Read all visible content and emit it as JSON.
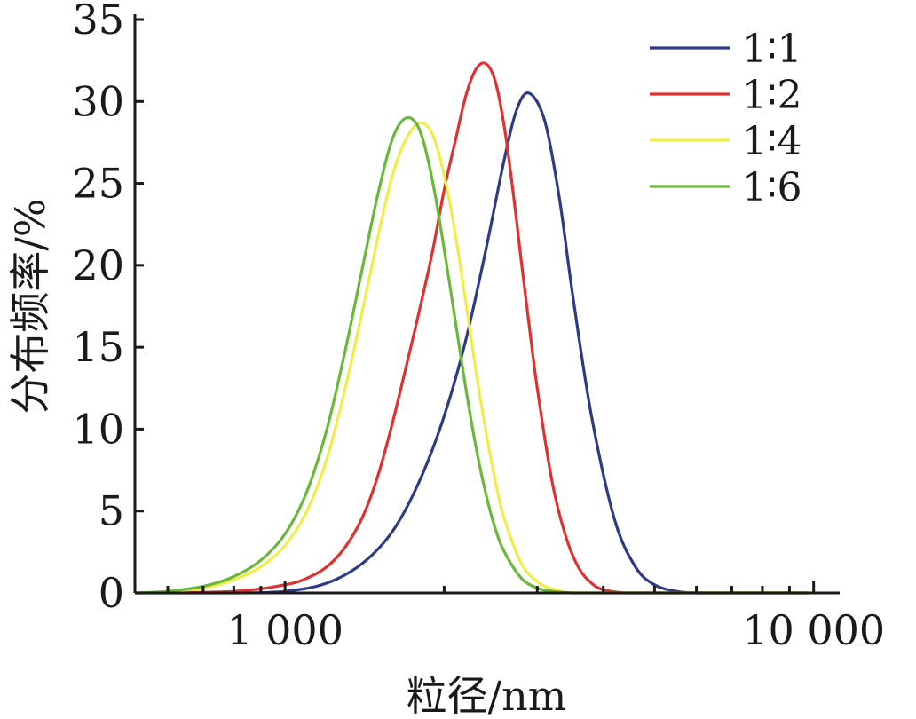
{
  "chart_data": {
    "type": "line",
    "x_scale": "log",
    "xlabel": "粒径/nm",
    "ylabel": "分布频率/%",
    "xlim": [
      520,
      11200
    ],
    "ylim": [
      0,
      35
    ],
    "x_ticks": [
      {
        "value": 1000,
        "label": "1 000"
      },
      {
        "value": 10000,
        "label": "10 000"
      }
    ],
    "y_ticks": [
      {
        "value": 0,
        "label": "0"
      },
      {
        "value": 5,
        "label": "5"
      },
      {
        "value": 10,
        "label": "10"
      },
      {
        "value": 15,
        "label": "15"
      },
      {
        "value": 20,
        "label": "20"
      },
      {
        "value": 25,
        "label": "25"
      },
      {
        "value": 30,
        "label": "30"
      },
      {
        "value": 35,
        "label": "35"
      }
    ],
    "grid": false,
    "legend_position": "top-right",
    "series": [
      {
        "name": "1∶1",
        "color": "#2e3a87",
        "x": [
          520,
          800,
          1000,
          1200,
          1400,
          1600,
          1800,
          2000,
          2200,
          2400,
          2600,
          2750,
          2900,
          3100,
          3300,
          3500,
          3800,
          4200,
          4600,
          5000,
          5500,
          6000,
          7000,
          8000,
          9000,
          9800
        ],
        "y": [
          0,
          0,
          0.1,
          0.6,
          1.8,
          3.8,
          6.9,
          10.8,
          15.5,
          21.0,
          26.5,
          29.6,
          30.5,
          28.8,
          24.2,
          18.2,
          10.8,
          4.5,
          1.6,
          0.5,
          0.1,
          0,
          0,
          0,
          0,
          0
        ]
      },
      {
        "name": "1∶2",
        "color": "#e03030",
        "x": [
          520,
          800,
          1000,
          1100,
          1200,
          1300,
          1400,
          1500,
          1600,
          1700,
          1800,
          1900,
          2000,
          2100,
          2200,
          2300,
          2400,
          2500,
          2600,
          2700,
          2800,
          2900,
          3000,
          3200,
          3400,
          3600,
          3800,
          4000,
          4400,
          5000,
          6000,
          9800
        ],
        "y": [
          0,
          0.1,
          0.5,
          0.9,
          1.6,
          2.8,
          4.6,
          7.2,
          10.5,
          14.0,
          17.4,
          20.8,
          24.6,
          27.6,
          30.4,
          32.0,
          32.3,
          31.2,
          28.4,
          24.5,
          20.2,
          16.2,
          12.5,
          6.8,
          3.4,
          1.5,
          0.6,
          0.2,
          0,
          0,
          0,
          0
        ]
      },
      {
        "name": "1∶4",
        "color": "#f0ec48",
        "x": [
          520,
          600,
          700,
          800,
          900,
          1000,
          1100,
          1200,
          1300,
          1400,
          1500,
          1600,
          1700,
          1800,
          1900,
          2000,
          2100,
          2200,
          2300,
          2400,
          2500,
          2600,
          2800,
          3000,
          3200,
          3500,
          4000,
          5000,
          9800
        ],
        "y": [
          0,
          0.1,
          0.3,
          0.8,
          1.6,
          2.9,
          5.0,
          8.2,
          12.5,
          17.2,
          21.8,
          25.6,
          27.8,
          28.7,
          28.0,
          25.5,
          21.9,
          17.6,
          13.4,
          9.8,
          6.8,
          4.5,
          1.8,
          0.7,
          0.25,
          0,
          0,
          0,
          0
        ]
      },
      {
        "name": "1∶6",
        "color": "#6ab83a",
        "x": [
          520,
          600,
          700,
          800,
          900,
          1000,
          1100,
          1200,
          1300,
          1400,
          1500,
          1600,
          1700,
          1800,
          1900,
          2000,
          2100,
          2200,
          2300,
          2400,
          2500,
          2600,
          2800,
          3000,
          3200,
          3500,
          4000,
          5000,
          9800
        ],
        "y": [
          0,
          0.1,
          0.4,
          1.0,
          2.0,
          3.6,
          6.2,
          10.0,
          14.8,
          19.8,
          24.4,
          27.8,
          29.0,
          28.2,
          25.2,
          21.0,
          16.6,
          12.4,
          8.8,
          6.0,
          3.9,
          2.5,
          0.9,
          0.3,
          0.1,
          0,
          0,
          0,
          0
        ]
      }
    ]
  }
}
